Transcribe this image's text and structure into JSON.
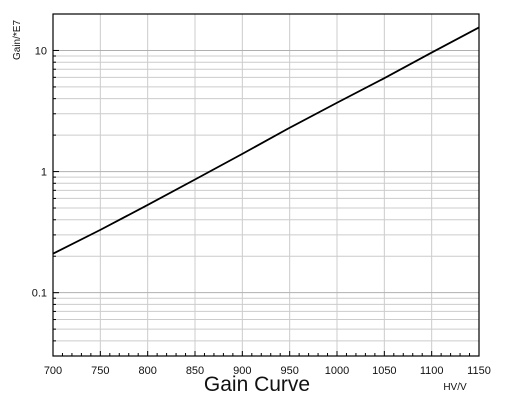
{
  "chart_data": {
    "type": "line",
    "title": "Gain Curve",
    "xlabel": "HV/V",
    "ylabel": "Gain/*E7",
    "xscale": "linear",
    "yscale": "log",
    "xlim": [
      700,
      1150
    ],
    "ylim": [
      0.03,
      20
    ],
    "x_ticks": [
      "700",
      "750",
      "800",
      "850",
      "900",
      "950",
      "1000",
      "1050",
      "1100",
      "1150"
    ],
    "y_ticks": [
      "0.1",
      "1",
      "10"
    ],
    "grid": true,
    "series": [
      {
        "x": [
          700,
          750,
          800,
          850,
          900,
          950,
          1000,
          1050,
          1100,
          1150
        ],
        "y": [
          0.21,
          0.33,
          0.53,
          0.86,
          1.4,
          2.3,
          3.7,
          5.9,
          9.6,
          15.5
        ]
      }
    ],
    "colors": {
      "line": "#000000",
      "grid": "#cccccc",
      "axes": "#000000",
      "text": "#111111"
    }
  }
}
